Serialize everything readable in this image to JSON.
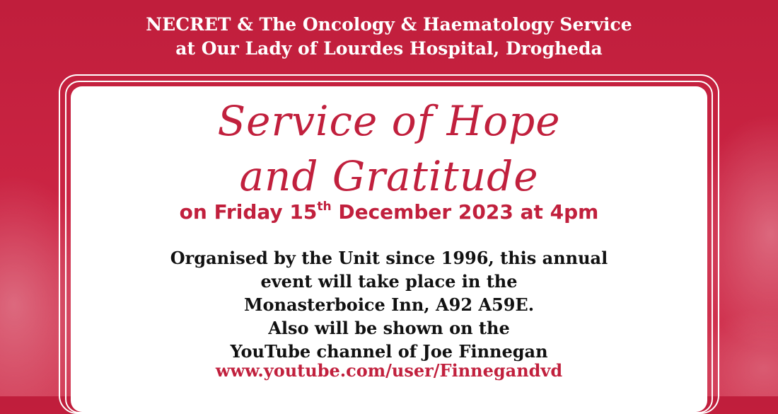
{
  "header": {
    "line1": "NECRET & The Oncology & Haematology Service",
    "line2": "at Our Lady of Lourdes Hospital, Drogheda"
  },
  "title": {
    "line1": "Service of Hope",
    "line2": "and Gratitude"
  },
  "date": {
    "prefix": "on Friday 15",
    "ordinal": "th",
    "suffix": " December 2023 at 4pm"
  },
  "details": {
    "line1": "Organised by the Unit since 1996, this annual",
    "line2": "event will take place in the",
    "line3": "Monasterboice Inn, A92 A59E.",
    "line4": "Also will be shown on the",
    "line5": "YouTube channel of Joe Finnegan"
  },
  "link": {
    "text": "www.youtube.com/user/Finnegandvd"
  },
  "colors": {
    "background": "#c6213f",
    "accent": "#c1203d",
    "panel": "#ffffff",
    "body_text": "#111111"
  }
}
